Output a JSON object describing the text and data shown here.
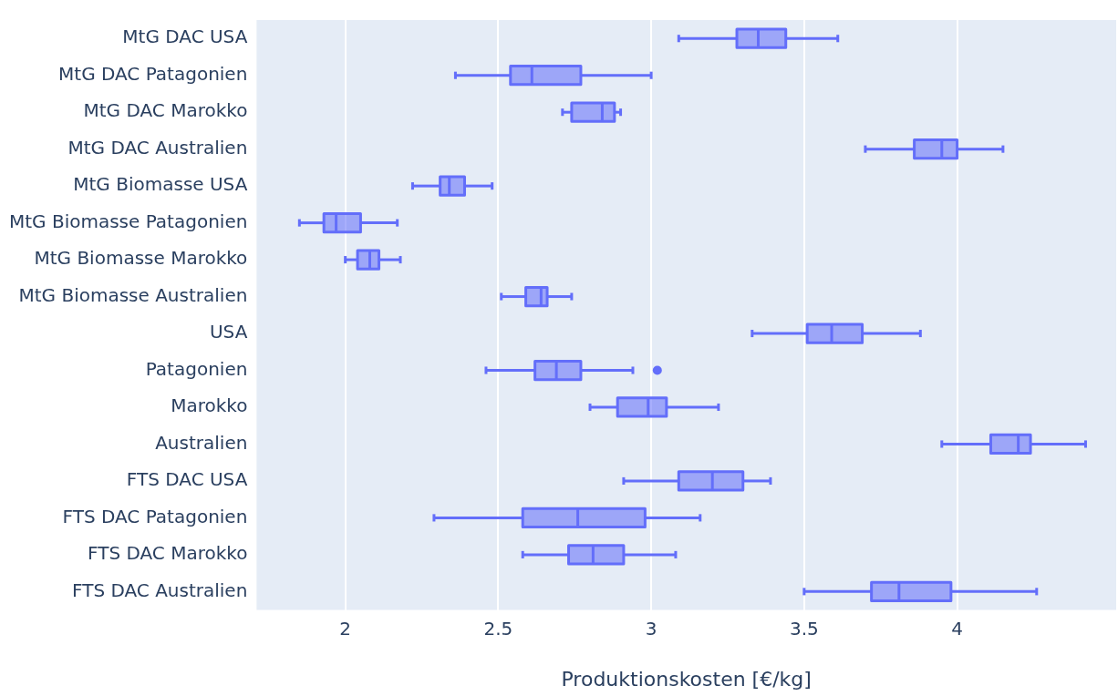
{
  "chart_data": {
    "type": "box",
    "orientation": "horizontal",
    "xlabel": "Produktionskosten [€/kg]",
    "categories": [
      "MtG DAC USA",
      "MtG DAC Patagonien",
      "MtG DAC Marokko",
      "MtG DAC Australien",
      "MtG Biomasse USA",
      "MtG Biomasse Patagonien",
      "MtG Biomasse Marokko",
      "MtG Biomasse Australien",
      "USA",
      "Patagonien",
      "Marokko",
      "Australien",
      "FTS DAC USA",
      "FTS DAC Patagonien",
      "FTS DAC Marokko",
      "FTS DAC Australien"
    ],
    "color": "#636efa",
    "boxes": [
      {
        "low": 3.09,
        "q1": 3.28,
        "median": 3.35,
        "q3": 3.44,
        "high": 3.61
      },
      {
        "low": 2.36,
        "q1": 2.54,
        "median": 2.61,
        "q3": 2.77,
        "high": 3.0
      },
      {
        "low": 2.71,
        "q1": 2.74,
        "median": 2.84,
        "q3": 2.88,
        "high": 2.9
      },
      {
        "low": 3.7,
        "q1": 3.86,
        "median": 3.95,
        "q3": 4.0,
        "high": 4.15
      },
      {
        "low": 2.22,
        "q1": 2.31,
        "median": 2.34,
        "q3": 2.39,
        "high": 2.48
      },
      {
        "low": 1.85,
        "q1": 1.93,
        "median": 1.97,
        "q3": 2.05,
        "high": 2.17
      },
      {
        "low": 2.0,
        "q1": 2.04,
        "median": 2.08,
        "q3": 2.11,
        "high": 2.18
      },
      {
        "low": 2.51,
        "q1": 2.59,
        "median": 2.64,
        "q3": 2.66,
        "high": 2.74
      },
      {
        "low": 3.33,
        "q1": 3.51,
        "median": 3.59,
        "q3": 3.69,
        "high": 3.88
      },
      {
        "low": 2.46,
        "q1": 2.62,
        "median": 2.69,
        "q3": 2.77,
        "high": 2.94,
        "outliers": [
          3.02
        ]
      },
      {
        "low": 2.8,
        "q1": 2.89,
        "median": 2.99,
        "q3": 3.05,
        "high": 3.22
      },
      {
        "low": 3.95,
        "q1": 4.11,
        "median": 4.2,
        "q3": 4.24,
        "high": 4.42
      },
      {
        "low": 2.91,
        "q1": 3.09,
        "median": 3.2,
        "q3": 3.3,
        "high": 3.39
      },
      {
        "low": 2.29,
        "q1": 2.58,
        "median": 2.76,
        "q3": 2.98,
        "high": 3.16
      },
      {
        "low": 2.58,
        "q1": 2.73,
        "median": 2.81,
        "q3": 2.91,
        "high": 3.08
      },
      {
        "low": 3.5,
        "q1": 3.72,
        "median": 3.81,
        "q3": 3.98,
        "high": 4.26
      }
    ],
    "xlim": [
      1.71,
      4.52
    ],
    "xticks": [
      2,
      2.5,
      3,
      3.5,
      4
    ],
    "grid": "x"
  }
}
